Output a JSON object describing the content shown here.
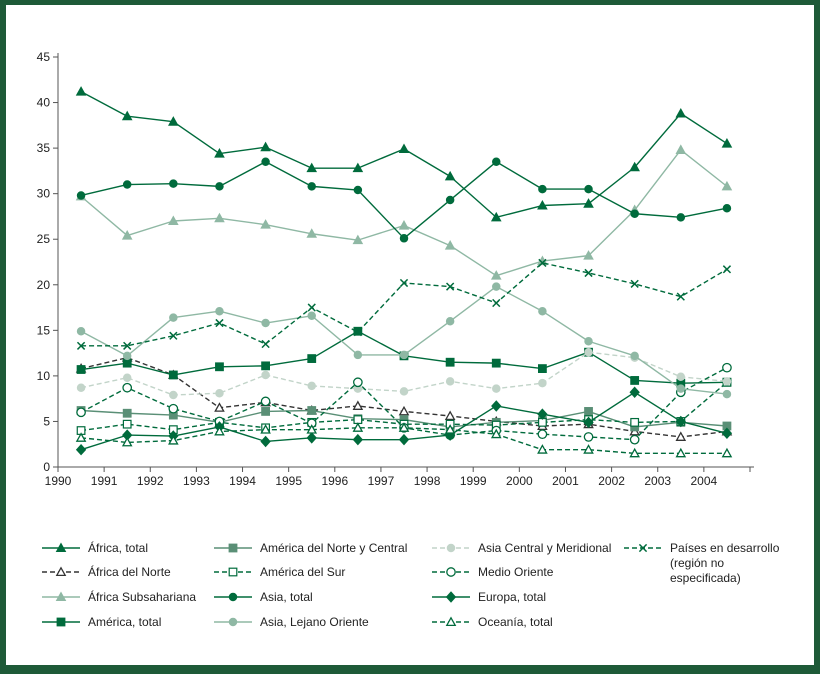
{
  "colors": {
    "frame": "#1e5a38",
    "dark": "#006b3c",
    "mid": "#5a8f76",
    "light": "#8fb8a4",
    "pale": "#c2d4c9",
    "black": "#333333"
  },
  "chart_data": {
    "type": "line",
    "title": "",
    "xlabel": "",
    "ylabel": "",
    "ylim": [
      0,
      45
    ],
    "yticks": [
      "0",
      "5",
      "10",
      "15",
      "20",
      "25",
      "30",
      "35",
      "40",
      "45"
    ],
    "xticks": [
      "1990",
      "1991",
      "1992",
      "1993",
      "1994",
      "1995",
      "1996",
      "1997",
      "1998",
      "1999",
      "2000",
      "2001",
      "2002",
      "2003",
      "2004"
    ],
    "x": [
      1990.5,
      1991.5,
      1992.5,
      1993.5,
      1994.5,
      1995.5,
      1996.5,
      1997.5,
      1998.5,
      1999.5,
      2000.5,
      2001.5,
      2002.5,
      2003.5,
      2004.5
    ],
    "grid": false,
    "legend_position": "bottom",
    "series": [
      {
        "name": "África, total",
        "color": "dark",
        "dash": false,
        "marker": "triangle-filled",
        "values": [
          41.2,
          38.5,
          37.9,
          34.4,
          35.1,
          32.8,
          32.8,
          34.9,
          31.9,
          27.4,
          28.7,
          28.9,
          32.9,
          38.8,
          35.5
        ]
      },
      {
        "name": "África del Norte",
        "color": "black",
        "dash": true,
        "marker": "triangle-open",
        "values": [
          10.8,
          12.0,
          10.1,
          6.5,
          7.1,
          6.2,
          6.7,
          6.1,
          5.6,
          5.0,
          4.5,
          4.7,
          3.9,
          3.3,
          3.9
        ]
      },
      {
        "name": "África Subsahariana",
        "color": "light",
        "dash": false,
        "marker": "triangle-filled",
        "values": [
          29.7,
          25.4,
          27.0,
          27.3,
          26.6,
          25.6,
          24.9,
          26.5,
          24.3,
          21.0,
          22.6,
          23.2,
          28.2,
          34.8,
          30.8
        ]
      },
      {
        "name": "América, total",
        "color": "dark",
        "dash": false,
        "marker": "square-filled",
        "values": [
          10.7,
          11.4,
          10.1,
          11.0,
          11.1,
          11.9,
          14.9,
          12.2,
          11.5,
          11.4,
          10.8,
          12.6,
          9.5,
          9.2,
          9.3
        ]
      },
      {
        "name": "América del Norte y Central",
        "color": "mid",
        "dash": false,
        "marker": "square-filled",
        "values": [
          6.2,
          5.9,
          5.7,
          4.9,
          6.1,
          6.2,
          5.3,
          5.2,
          4.4,
          4.9,
          5.1,
          6.1,
          4.4,
          4.9,
          4.5
        ]
      },
      {
        "name": "América del Sur",
        "color": "dark",
        "dash": true,
        "marker": "square-open",
        "values": [
          4.0,
          4.7,
          4.1,
          4.9,
          4.3,
          4.9,
          5.2,
          4.7,
          4.7,
          4.6,
          4.9,
          5.2,
          4.9,
          5.0,
          9.3
        ]
      },
      {
        "name": "Asia Central y Meridional",
        "color": "pale",
        "dash": true,
        "marker": "circle-filled",
        "values": [
          8.7,
          9.8,
          7.9,
          8.1,
          10.1,
          8.9,
          8.6,
          8.3,
          9.4,
          8.6,
          9.2,
          12.6,
          12.0,
          9.9,
          9.4
        ]
      },
      {
        "name": "Medio Oriente",
        "color": "dark",
        "dash": true,
        "marker": "circle-open",
        "values": [
          6.0,
          8.7,
          6.4,
          5.0,
          7.2,
          4.8,
          9.3,
          4.3,
          3.5,
          4.0,
          3.6,
          3.3,
          3.0,
          8.2,
          10.9
        ]
      },
      {
        "name": "Asia, total",
        "color": "dark",
        "dash": false,
        "marker": "circle-filled",
        "values": [
          29.8,
          31.0,
          31.1,
          30.8,
          33.5,
          30.8,
          30.4,
          25.1,
          29.3,
          33.5,
          30.5,
          30.5,
          27.8,
          27.4,
          28.4
        ]
      },
      {
        "name": "Asia, Lejano Oriente",
        "color": "light",
        "dash": false,
        "marker": "circle-filled",
        "values": [
          14.9,
          12.2,
          16.4,
          17.1,
          15.8,
          16.6,
          12.3,
          12.3,
          16.0,
          19.8,
          17.1,
          13.8,
          12.2,
          8.6,
          8.0
        ]
      },
      {
        "name": "Países en desarrollo (región no especificada)",
        "color": "dark",
        "dash": true,
        "marker": "x",
        "values": [
          13.3,
          13.3,
          14.4,
          15.8,
          13.5,
          17.5,
          14.8,
          20.2,
          19.8,
          18.0,
          22.4,
          21.3,
          20.1,
          18.7,
          21.7
        ]
      },
      {
        "name": "Europa, total",
        "color": "dark",
        "dash": false,
        "marker": "diamond-filled",
        "values": [
          1.9,
          3.5,
          3.4,
          4.4,
          2.8,
          3.2,
          3.0,
          3.0,
          3.5,
          6.7,
          5.8,
          4.9,
          8.2,
          5.0,
          3.7
        ]
      },
      {
        "name": "Oceanía, total",
        "color": "dark",
        "dash": true,
        "marker": "triangle-open",
        "values": [
          3.2,
          2.7,
          2.9,
          3.9,
          4.1,
          4.1,
          4.3,
          4.3,
          4.1,
          3.6,
          1.9,
          1.9,
          1.5,
          1.5,
          1.5
        ]
      }
    ]
  },
  "legend": {
    "col1": [
      "África, total",
      "África del Norte",
      "África Subsahariana",
      "América, total"
    ],
    "col2": [
      "América del Norte y Central",
      "América del Sur",
      "Asia, total",
      "Asia, Lejano Oriente"
    ],
    "col3": [
      "Asia Central y Meridional",
      "Medio Oriente",
      "Europa, total",
      "Oceanía, total"
    ],
    "col4_lines": [
      "Países en desarrollo",
      "(región no",
      "especificada)"
    ]
  }
}
